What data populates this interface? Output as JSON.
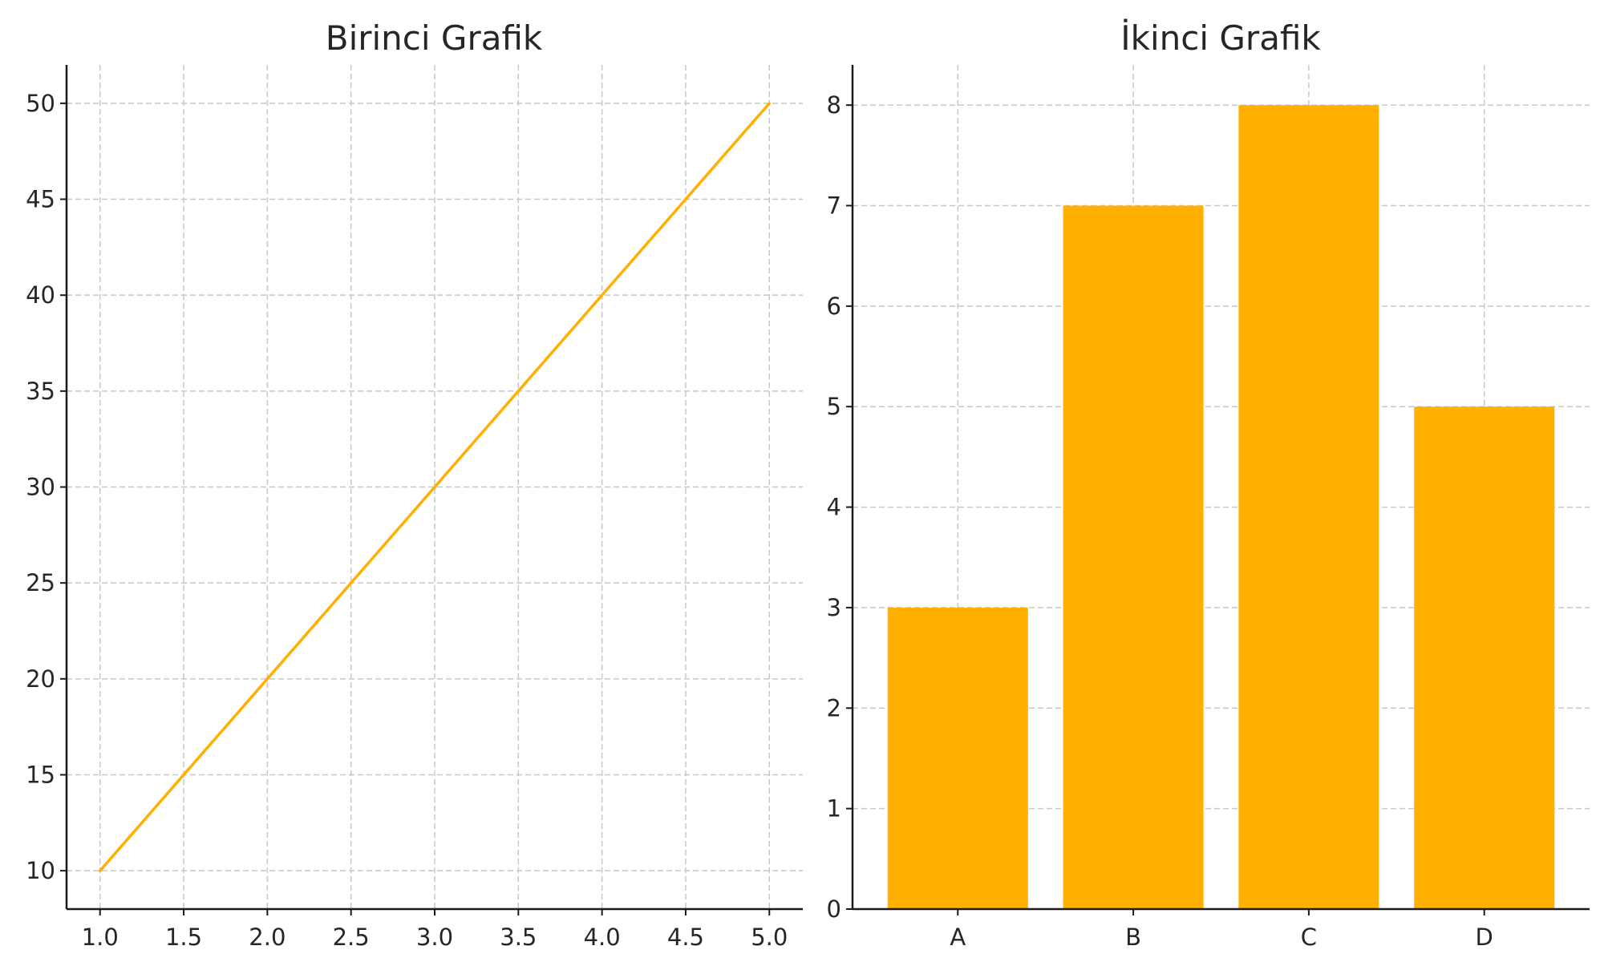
{
  "chart_data": [
    {
      "type": "line",
      "title": "Birinci Grafik",
      "xlabel": "",
      "ylabel": "",
      "x": [
        1,
        2,
        3,
        4,
        5
      ],
      "series": [
        {
          "values": [
            10,
            20,
            30,
            40,
            50
          ],
          "color": "#FFB000"
        }
      ],
      "xlim": [
        0.8,
        5.2
      ],
      "ylim": [
        8,
        52
      ],
      "xticks": [
        "1.0",
        "1.5",
        "2.0",
        "2.5",
        "3.0",
        "3.5",
        "4.0",
        "4.5",
        "5.0"
      ],
      "xtick_values": [
        1.0,
        1.5,
        2.0,
        2.5,
        3.0,
        3.5,
        4.0,
        4.5,
        5.0
      ],
      "yticks": [
        "10",
        "15",
        "20",
        "25",
        "30",
        "35",
        "40",
        "45",
        "50"
      ],
      "ytick_values": [
        10,
        15,
        20,
        25,
        30,
        35,
        40,
        45,
        50
      ],
      "grid": true,
      "grid_style": "dashed"
    },
    {
      "type": "bar",
      "title": "İkinci Grafik",
      "xlabel": "",
      "ylabel": "",
      "categories": [
        "A",
        "B",
        "C",
        "D"
      ],
      "values": [
        3,
        7,
        8,
        5
      ],
      "color": "#FFB000",
      "ylim": [
        0,
        8.4
      ],
      "yticks": [
        "0",
        "1",
        "2",
        "3",
        "4",
        "5",
        "6",
        "7",
        "8"
      ],
      "ytick_values": [
        0,
        1,
        2,
        3,
        4,
        5,
        6,
        7,
        8
      ],
      "grid": true,
      "grid_style": "dashed"
    }
  ]
}
